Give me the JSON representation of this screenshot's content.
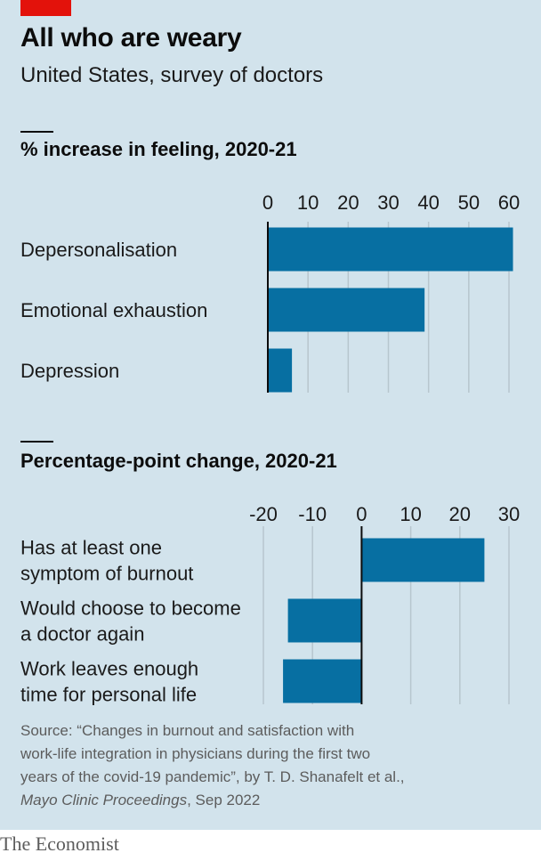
{
  "title": "All who are weary",
  "subtitle": "United States, survey of doctors",
  "source_line_1": "Source: “Changes in burnout and satisfaction with",
  "source_line_2": "work-life integration in physicians during the first two",
  "source_line_3": "years of the covid-19 pandemic”, by T. D. Shanafelt et al.,",
  "source_journal": "Mayo Clinic Proceedings",
  "source_date": ", Sep 2022",
  "brand": "The Economist",
  "colors": {
    "bar": "#076fa2",
    "background": "#d2e3ec",
    "grid": "#b7c6ce",
    "tag": "#e3120b"
  },
  "chart_data": [
    {
      "type": "bar",
      "orientation": "horizontal",
      "title": "% increase in feeling, 2020-21",
      "categories": [
        "Depersonalisation",
        "Emotional exhaustion",
        "Depression"
      ],
      "values": [
        61,
        39,
        6
      ],
      "xlim": [
        0,
        60
      ],
      "xticks": [
        "0",
        "10",
        "20",
        "30",
        "40",
        "50",
        "60"
      ],
      "grid": true
    },
    {
      "type": "bar",
      "orientation": "horizontal",
      "title": "Percentage-point change, 2020-21",
      "categories": [
        [
          "Has at least one",
          "symptom of burnout"
        ],
        [
          "Would choose to become",
          "a doctor again"
        ],
        [
          "Work leaves enough",
          "time for personal life"
        ]
      ],
      "values": [
        25,
        -15,
        -16
      ],
      "xlim": [
        -20,
        30
      ],
      "xticks": [
        "-20",
        "-10",
        "0",
        "10",
        "20",
        "30"
      ],
      "grid": true
    }
  ]
}
